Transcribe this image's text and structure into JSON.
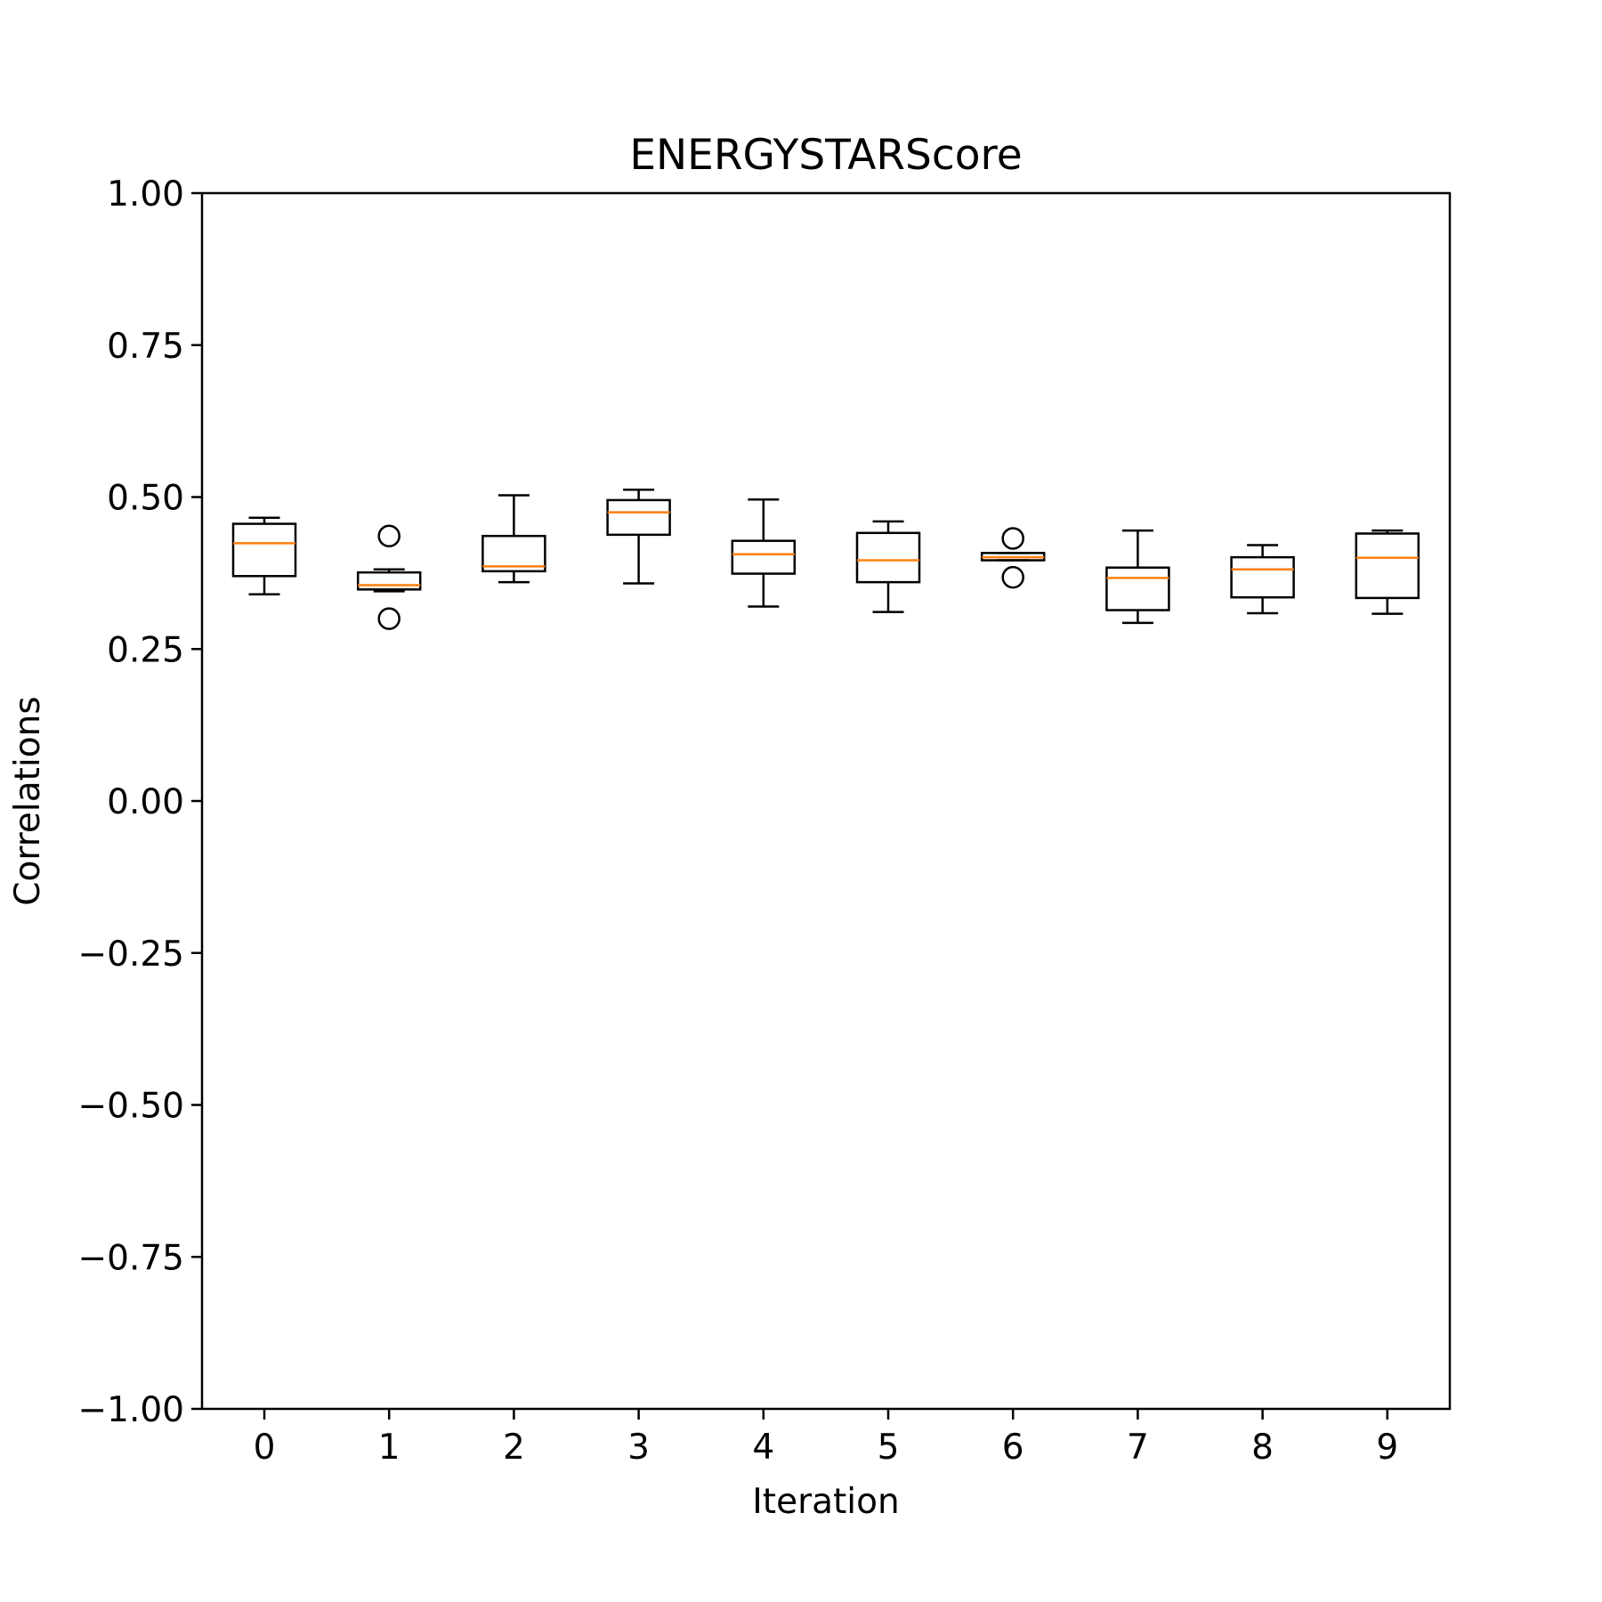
{
  "chart_data": {
    "type": "box",
    "title": "ENERGYSTARScore",
    "xlabel": "Iteration",
    "ylabel": "Correlations",
    "ylim": [
      -1.0,
      1.0
    ],
    "yticks": [
      "−1.00",
      "−0.75",
      "−0.50",
      "−0.25",
      "0.00",
      "0.25",
      "0.50",
      "0.75",
      "1.00"
    ],
    "ytick_values": [
      -1.0,
      -0.75,
      -0.5,
      -0.25,
      0.0,
      0.25,
      0.5,
      0.75,
      1.0
    ],
    "categories": [
      "0",
      "1",
      "2",
      "3",
      "4",
      "5",
      "6",
      "7",
      "8",
      "9"
    ],
    "grid": false,
    "colors": {
      "box": "#000000",
      "median": "#ff7f0e"
    },
    "boxes": [
      {
        "whisker_low": 0.34,
        "q1": 0.37,
        "median": 0.424,
        "q3": 0.456,
        "whisker_high": 0.466,
        "outliers": []
      },
      {
        "whisker_low": 0.345,
        "q1": 0.348,
        "median": 0.355,
        "q3": 0.376,
        "whisker_high": 0.381,
        "outliers": [
          0.436,
          0.3
        ]
      },
      {
        "whisker_low": 0.36,
        "q1": 0.378,
        "median": 0.386,
        "q3": 0.436,
        "whisker_high": 0.503,
        "outliers": []
      },
      {
        "whisker_low": 0.358,
        "q1": 0.438,
        "median": 0.475,
        "q3": 0.495,
        "whisker_high": 0.512,
        "outliers": []
      },
      {
        "whisker_low": 0.32,
        "q1": 0.374,
        "median": 0.406,
        "q3": 0.428,
        "whisker_high": 0.496,
        "outliers": []
      },
      {
        "whisker_low": 0.311,
        "q1": 0.36,
        "median": 0.396,
        "q3": 0.441,
        "whisker_high": 0.46,
        "outliers": []
      },
      {
        "whisker_low": 0.396,
        "q1": 0.396,
        "median": 0.401,
        "q3": 0.408,
        "whisker_high": 0.408,
        "outliers": [
          0.432,
          0.368
        ]
      },
      {
        "whisker_low": 0.293,
        "q1": 0.314,
        "median": 0.367,
        "q3": 0.384,
        "whisker_high": 0.445,
        "outliers": []
      },
      {
        "whisker_low": 0.309,
        "q1": 0.335,
        "median": 0.381,
        "q3": 0.401,
        "whisker_high": 0.421,
        "outliers": []
      },
      {
        "whisker_low": 0.308,
        "q1": 0.334,
        "median": 0.4,
        "q3": 0.44,
        "whisker_high": 0.445,
        "outliers": []
      }
    ]
  }
}
